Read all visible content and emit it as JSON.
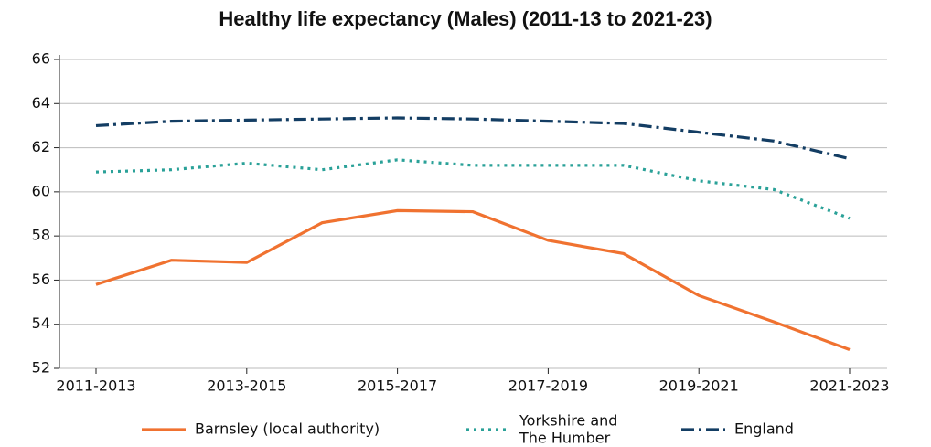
{
  "chart_data": {
    "type": "line",
    "title": "Healthy life expectancy (Males) (2011-13 to 2021-23)",
    "categories": [
      "2011-2013",
      null,
      "2013-2015",
      null,
      "2015-2017",
      null,
      "2017-2019",
      null,
      "2019-2021",
      null,
      "2021-2023"
    ],
    "series": [
      {
        "name": "Barnsley (local authority)",
        "color": "#f07230",
        "dash": "solid",
        "values": [
          55.8,
          56.9,
          56.8,
          58.6,
          59.15,
          59.1,
          57.8,
          57.2,
          55.3,
          54.1,
          52.85
        ]
      },
      {
        "name": "Yorkshire and\nThe Humber",
        "color": "#2aa198",
        "dash": "dotted",
        "values": [
          60.9,
          61.0,
          61.3,
          61.0,
          61.45,
          61.2,
          61.2,
          61.2,
          60.5,
          60.1,
          58.8
        ]
      },
      {
        "name": "England",
        "color": "#133d63",
        "dash": "dashdot",
        "values": [
          63.0,
          63.2,
          63.25,
          63.3,
          63.35,
          63.3,
          63.2,
          63.1,
          62.7,
          62.3,
          61.5
        ]
      }
    ],
    "ylim": [
      52,
      66
    ],
    "yticks": [
      52,
      54,
      56,
      58,
      60,
      62,
      64,
      66
    ],
    "grid": true,
    "legend": "bottom"
  }
}
